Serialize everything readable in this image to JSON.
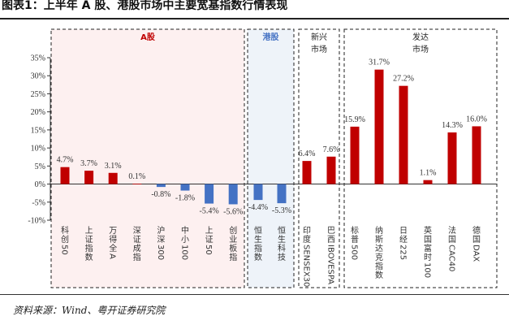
{
  "title": "图表1：上半年 A 股、港股市场中主要宽基指数行情表现",
  "source": "资料来源：Wind、粤开证券研究院",
  "colors": {
    "positive": "#c00000",
    "negative": "#4472c4",
    "a_share_bg": "#fdf0f0",
    "hk_bg": "#eef3f9"
  },
  "groups": [
    {
      "label": "A股",
      "color": "#c00000"
    },
    {
      "label": "港股",
      "color": "#4472c4"
    },
    {
      "label": "新兴\n市场",
      "color": "#222222"
    },
    {
      "label": "发达\n市场",
      "color": "#222222"
    }
  ],
  "chart_data": {
    "type": "bar",
    "title": "图表1：上半年 A 股、港股市场中主要宽基指数行情表现",
    "xlabel": "",
    "ylabel": "",
    "ylim": [
      -10,
      35
    ],
    "yticks": [
      "35%",
      "30%",
      "25%",
      "20%",
      "15%",
      "10%",
      "5%",
      "0%",
      "-5%",
      "-10%"
    ],
    "grid": false,
    "categories": [
      "科创50",
      "上证指数",
      "万得全A",
      "深证成指",
      "沪深300",
      "中小100",
      "上证50",
      "创业板指",
      "恒生指数",
      "恒生科技",
      "印度SENSEX30",
      "巴西IBOVESPA",
      "标普500",
      "纳斯达克指数",
      "日经225",
      "英国富时100",
      "法国CAC40",
      "德国DAX"
    ],
    "values": [
      4.7,
      3.7,
      3.1,
      0.1,
      -0.8,
      -1.8,
      -5.4,
      -5.6,
      -4.4,
      -5.3,
      6.4,
      7.6,
      15.9,
      31.7,
      27.2,
      1.1,
      14.3,
      16.0
    ],
    "value_labels": [
      "4.7%",
      "3.7%",
      "3.1%",
      "0.1%",
      "-0.8%",
      "-1.8%",
      "-5.4%",
      "-5.6%",
      "-4.4%",
      "-5.3%",
      "6.4%",
      "7.6%",
      "15.9%",
      "31.7%",
      "27.2%",
      "1.1%",
      "14.3%",
      "16.0%"
    ],
    "groups": [
      "A股",
      "A股",
      "A股",
      "A股",
      "A股",
      "A股",
      "A股",
      "A股",
      "港股",
      "港股",
      "新兴市场",
      "新兴市场",
      "发达市场",
      "发达市场",
      "发达市场",
      "发达市场",
      "发达市场",
      "发达市场"
    ]
  }
}
